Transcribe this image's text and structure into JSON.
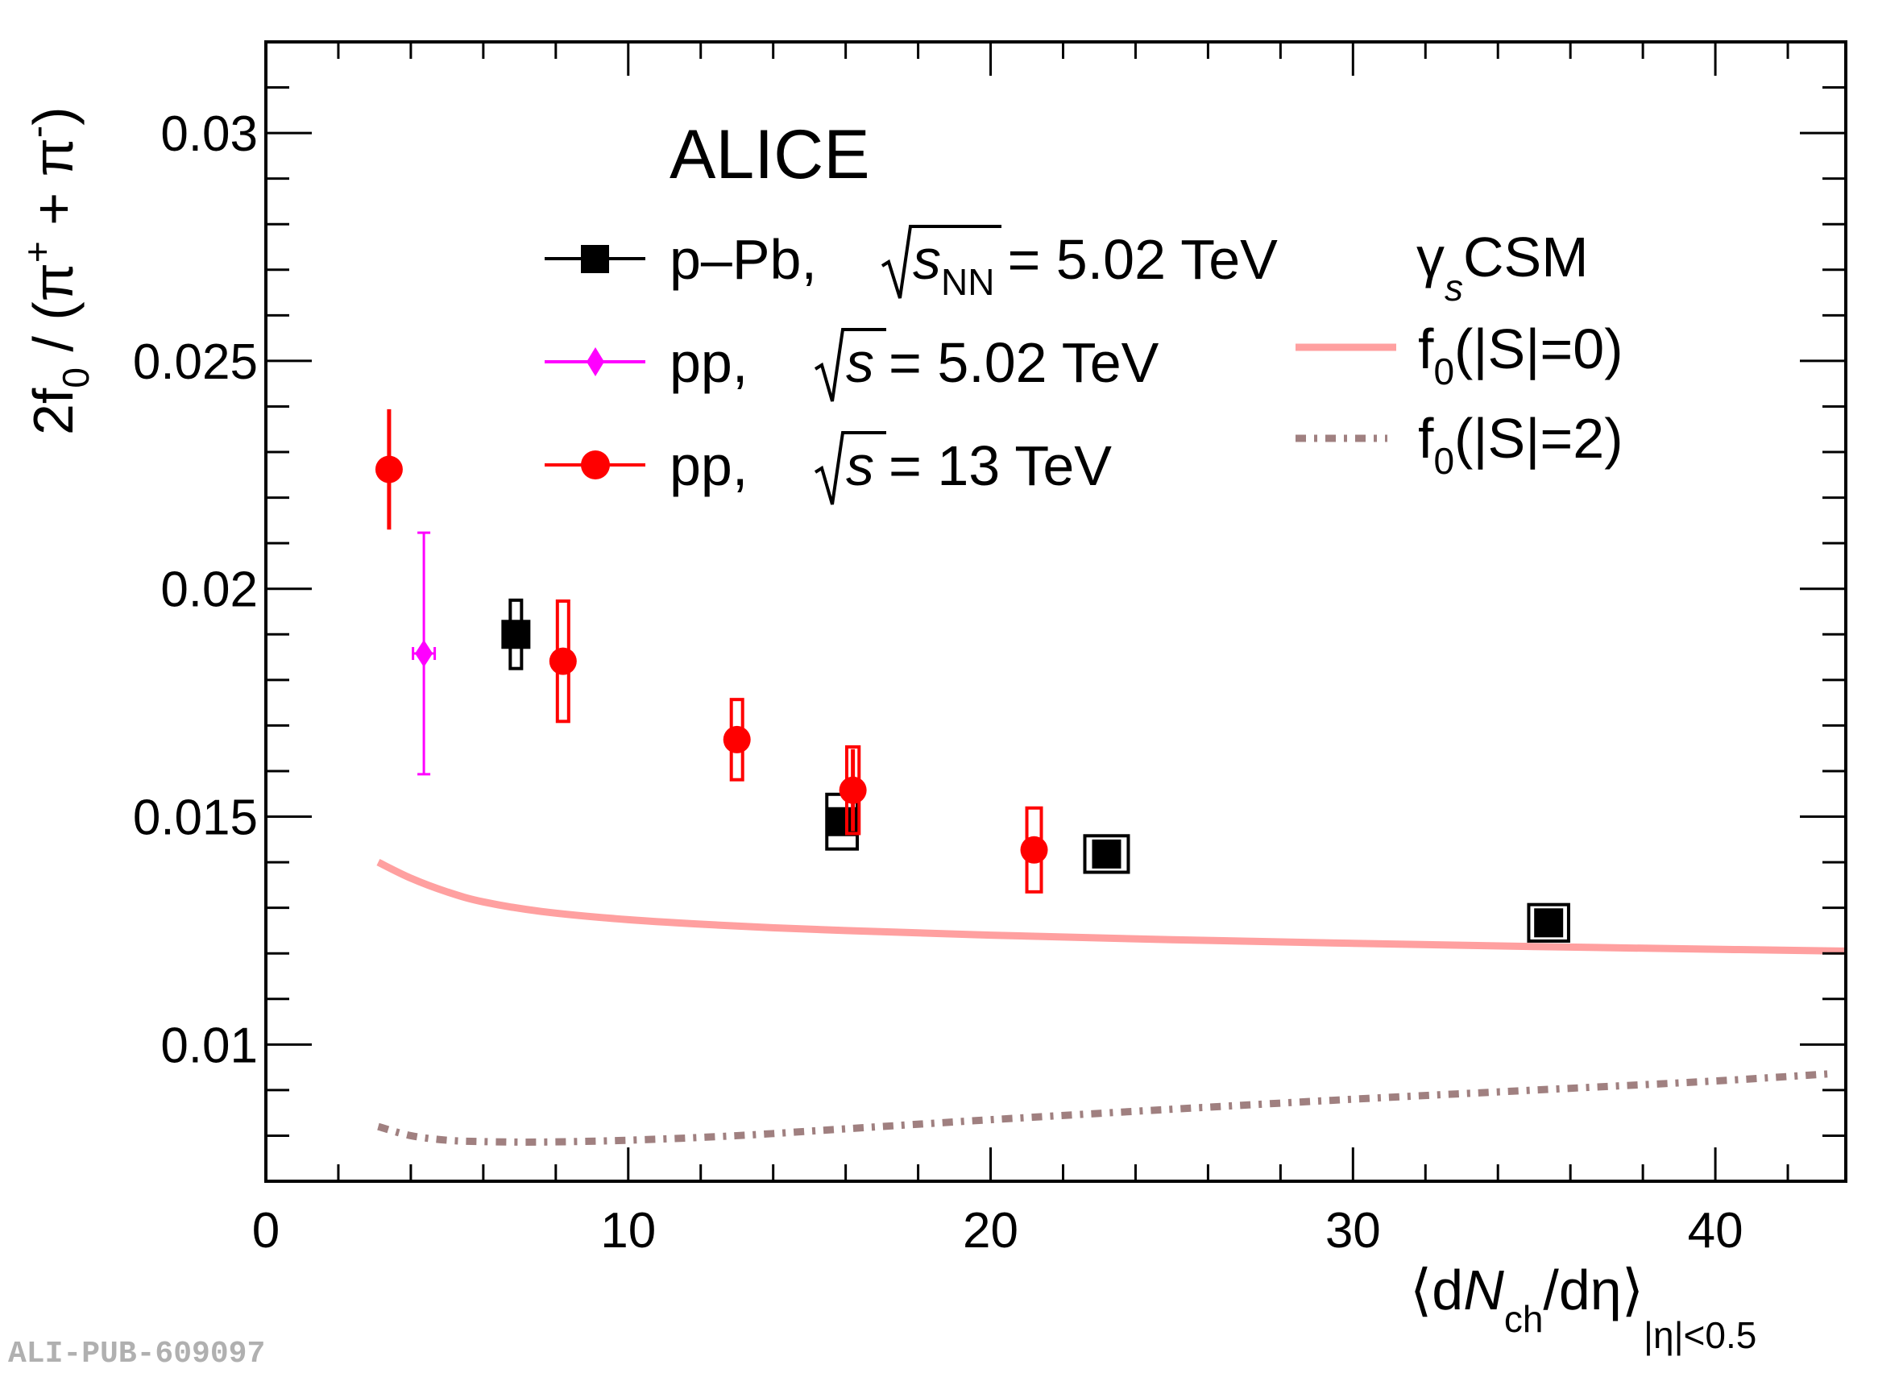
{
  "watermark": "ALI-PUB-609097",
  "chart_data": {
    "type": "scatter",
    "title": "ALICE",
    "xlabel": {
      "main": "⟨dN",
      "main_italic": "N",
      "sub_ch": "ch",
      "rest": "/dη⟩",
      "sub": "|η|<0.5",
      "full": "⟨dN_ch/dη⟩_|η|<0.5"
    },
    "ylabel": {
      "full": "2f0 / (π+ + π-)",
      "prefix": "2f",
      "sub0": "0",
      "mid": " / (π",
      "sup_plus": "+",
      "plus": " + π",
      "sup_minus": "-",
      "close": ")"
    },
    "xlim": [
      0,
      43.6
    ],
    "ylim": [
      0.007,
      0.032
    ],
    "xticks": [
      0,
      10,
      20,
      30,
      40
    ],
    "xtick_labels": [
      "0",
      "10",
      "20",
      "30",
      "40"
    ],
    "xminor_step": 2,
    "yticks": [
      0.01,
      0.015,
      0.02,
      0.025,
      0.03
    ],
    "ytick_labels": [
      "0.01",
      "0.015",
      "0.02",
      "0.025",
      "0.03"
    ],
    "yminor_step": 0.001,
    "grid": false,
    "legend_placement": "top",
    "series": [
      {
        "name": "p–Pb, √s_NN = 5.02 TeV",
        "legend": {
          "system": "p–Pb,",
          "energy_label": "s",
          "energy_sub": "NN",
          "energy_value": "= 5.02 TeV"
        },
        "color": "#000000",
        "marker": "square",
        "points": [
          {
            "x": 6.9,
            "y": 0.019,
            "stat": 0.00025,
            "sys": 0.00075,
            "xsys": 0.15
          },
          {
            "x": 15.9,
            "y": 0.01489,
            "stat": 0.0002,
            "sys": 0.0006,
            "xsys": 0.42
          },
          {
            "x": 23.2,
            "y": 0.01418,
            "stat": 0.0002,
            "sys": 0.0004,
            "xsys": 0.6
          },
          {
            "x": 35.4,
            "y": 0.01267,
            "stat": 0.0002,
            "sys": 0.0004,
            "xsys": 0.55
          }
        ]
      },
      {
        "name": "pp, √s = 5.02 TeV",
        "legend": {
          "system": "pp,",
          "energy_label": "s",
          "energy_sub": "",
          "energy_value": "= 5.02 TeV"
        },
        "color": "#ff00ff",
        "marker": "diamond",
        "points": [
          {
            "x": 4.36,
            "y": 0.01858,
            "stat": 0.00265,
            "sys": 0,
            "xerr": 0.3
          }
        ]
      },
      {
        "name": "pp, √s = 13 TeV",
        "legend": {
          "system": "pp,",
          "energy_label": "s",
          "energy_sub": "",
          "energy_value": "= 13 TeV"
        },
        "color": "#ff0000",
        "marker": "circle",
        "points": [
          {
            "x": 3.4,
            "y": 0.02262,
            "stat": 0.00132,
            "sys": 0,
            "xsys": 0
          },
          {
            "x": 8.2,
            "y": 0.01841,
            "stat": 0.0002,
            "sys": 0.00132,
            "xsys": 0.1
          },
          {
            "x": 13.0,
            "y": 0.01669,
            "stat": 0.0002,
            "sys": 0.00088,
            "xsys": 0.12
          },
          {
            "x": 16.2,
            "y": 0.01558,
            "stat": 0.0009,
            "sys": 0.00095,
            "xsys": 0.17
          },
          {
            "x": 21.2,
            "y": 0.01427,
            "stat": 0.0002,
            "sys": 0.00092,
            "xsys": 0.2
          }
        ]
      }
    ],
    "model": {
      "title": "γ",
      "title_sub": "s",
      "title_rest": "CSM",
      "curves": [
        {
          "name": "f0(|S|=0)",
          "label_pre": "f",
          "label_sub": "0",
          "label_post": "(|S|=0)",
          "color": "#ffa0a0",
          "style": "solid",
          "x": [
            3.1,
            4,
            5,
            6,
            7.6,
            10,
            13,
            16,
            20,
            25,
            30,
            35,
            40,
            43.6
          ],
          "y": [
            0.014,
            0.01365,
            0.01335,
            0.01313,
            0.01292,
            0.01274,
            0.0126,
            0.0125,
            0.0124,
            0.0123,
            0.01222,
            0.01215,
            0.01209,
            0.01205
          ]
        },
        {
          "name": "f0(|S|=2)",
          "label_pre": "f",
          "label_sub": "0",
          "label_post": "(|S|=2)",
          "color": "#a08080",
          "style": "dash-dot",
          "x": [
            3.1,
            4,
            5,
            6,
            7.6,
            10,
            13,
            16,
            20,
            25,
            30,
            35,
            40,
            43.2
          ],
          "y": [
            0.0082,
            0.008,
            0.0079,
            0.00787,
            0.00786,
            0.0079,
            0.008,
            0.00815,
            0.00835,
            0.00858,
            0.0088,
            0.009,
            0.0092,
            0.00936
          ]
        }
      ]
    }
  }
}
